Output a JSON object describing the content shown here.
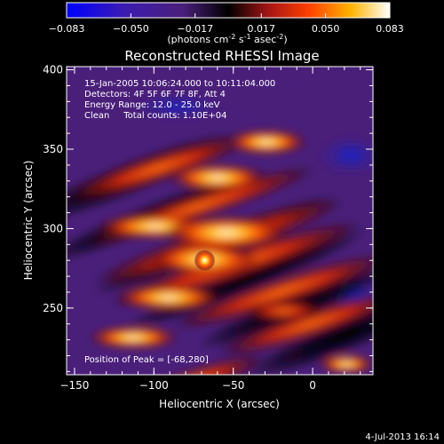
{
  "colorbar": {
    "ticks": [
      "-0.083",
      "-0.050",
      "-0.017",
      "0.017",
      "0.050",
      "0.083"
    ],
    "units_main": "(photons cm",
    "units_sup1": "-2",
    "units_mid": " s",
    "units_sup2": "-1",
    "units_end": " asec",
    "units_sup3": "-2",
    "units_close": ")"
  },
  "chart_data": {
    "type": "heatmap",
    "title": "Reconstructed RHESSI Image",
    "xlabel": "Heliocentric X (arcsec)",
    "ylabel": "Heliocentric Y (arcsec)",
    "xlim": [
      -155,
      38
    ],
    "ylim": [
      208,
      402
    ],
    "x_ticks": [
      -150,
      -100,
      -50,
      0
    ],
    "y_ticks": [
      250,
      300,
      350,
      400
    ],
    "value_range": [
      -0.083,
      0.083
    ],
    "peak": {
      "x": -68,
      "y": 280,
      "value": 0.083
    },
    "colormap": [
      "#0000ff",
      "#3c14b0",
      "#5a2a8c",
      "#000000",
      "#a01414",
      "#ff3c00",
      "#ffb400",
      "#ffffff"
    ],
    "info_lines": [
      "15-Jan-2005 10:06:24.000 to 10:11:04.000",
      "Detectors: 4F 5F 6F 7F 8F, Att 4",
      "Energy Range: 12.0 - 25.0 keV",
      "Clean     Total counts: 1.10E+04"
    ],
    "peak_label": "Position of Peak = [-68,280]"
  },
  "footer": {
    "date": "4-Jul-2013 16:14"
  }
}
